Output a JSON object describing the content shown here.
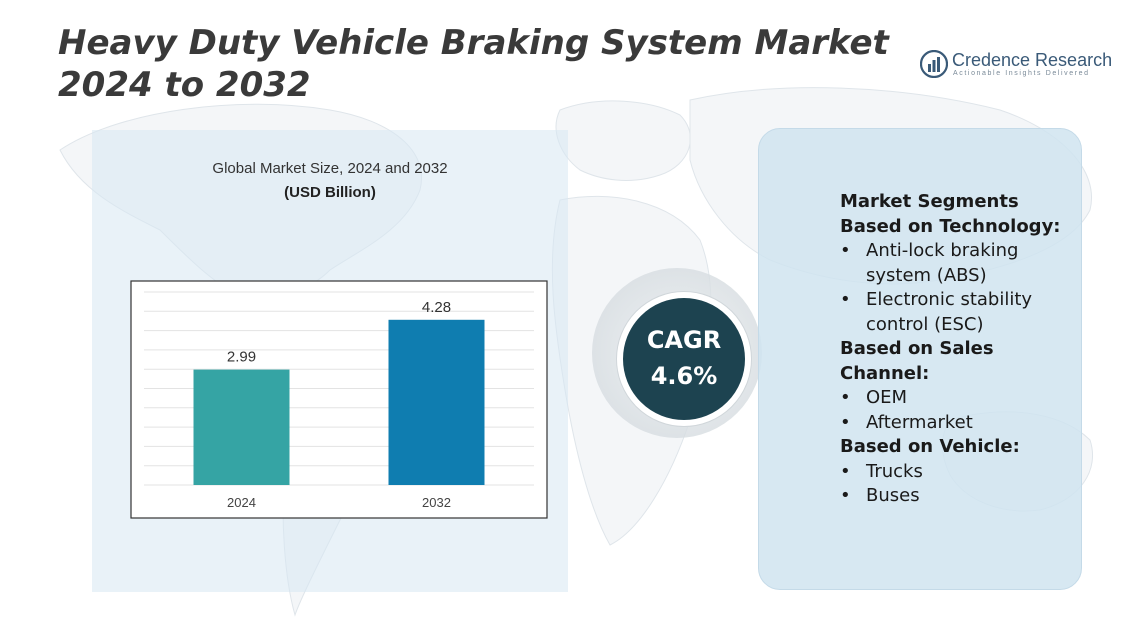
{
  "title": "Heavy Duty Vehicle Braking System Market 2024 to 2032",
  "logo": {
    "name": "Credence Research",
    "tagline": "Actionable Insights Delivered",
    "icon": "bar-chart-logo-icon",
    "color": "#3a5a78"
  },
  "colors": {
    "bar_2024": "#35a4a4",
    "bar_2032": "#0f7db0",
    "cagr_circle": "#1d4350",
    "panel": "#d7e8f2"
  },
  "chart_data": {
    "type": "bar",
    "title": "Global Market Size, 2024 and 2032",
    "subtitle": "(USD Billion)",
    "categories": [
      "2024",
      "2032"
    ],
    "values": [
      2.99,
      4.28
    ],
    "data_labels": [
      "2.99",
      "4.28"
    ],
    "ylim": [
      0,
      5
    ],
    "grid": true,
    "legend": "none"
  },
  "cagr": {
    "label": "CAGR",
    "value": "4.6%"
  },
  "segments": {
    "heading": "Market Segments",
    "groups": [
      {
        "title": "Based on Technology:",
        "items": [
          "Anti-lock braking system (ABS)",
          "Electronic stability control (ESC)"
        ]
      },
      {
        "title": "Based on Sales Channel:",
        "items": [
          "OEM",
          "Aftermarket"
        ]
      },
      {
        "title": "Based on Vehicle:",
        "items": [
          "Trucks",
          "Buses"
        ]
      }
    ]
  }
}
